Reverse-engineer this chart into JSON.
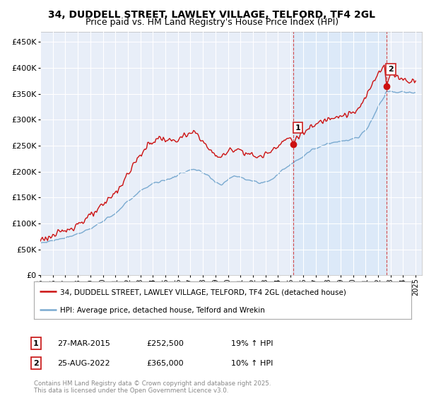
{
  "title": "34, DUDDELL STREET, LAWLEY VILLAGE, TELFORD, TF4 2GL",
  "subtitle": "Price paid vs. HM Land Registry's House Price Index (HPI)",
  "title_fontsize": 10,
  "subtitle_fontsize": 9,
  "ylabel_ticks": [
    "£0",
    "£50K",
    "£100K",
    "£150K",
    "£200K",
    "£250K",
    "£300K",
    "£350K",
    "£400K",
    "£450K"
  ],
  "ytick_values": [
    0,
    50000,
    100000,
    150000,
    200000,
    250000,
    300000,
    350000,
    400000,
    450000
  ],
  "ylim": [
    0,
    470000
  ],
  "xlim_start": 1995.0,
  "xlim_end": 2025.5,
  "background_color": "#ffffff",
  "plot_bg_color": "#e8eef8",
  "plot_bg_color2": "#dce8f5",
  "grid_color": "#ffffff",
  "hpi_line_color": "#7aaad0",
  "price_line_color": "#cc1111",
  "marker1_x": 2015.23,
  "marker1_y": 252500,
  "marker2_x": 2022.65,
  "marker2_y": 365000,
  "marker1_label": "1",
  "marker2_label": "2",
  "vline_color": "#cc2222",
  "shade_color": "#d8e8f8",
  "legend_label_price": "34, DUDDELL STREET, LAWLEY VILLAGE, TELFORD, TF4 2GL (detached house)",
  "legend_label_hpi": "HPI: Average price, detached house, Telford and Wrekin",
  "annotation1": [
    "1",
    "27-MAR-2015",
    "£252,500",
    "19% ↑ HPI"
  ],
  "annotation2": [
    "2",
    "25-AUG-2022",
    "£365,000",
    "10% ↑ HPI"
  ],
  "footer": "Contains HM Land Registry data © Crown copyright and database right 2025.\nThis data is licensed under the Open Government Licence v3.0.",
  "xtick_years": [
    1995,
    1996,
    1997,
    1998,
    1999,
    2000,
    2001,
    2002,
    2003,
    2004,
    2005,
    2006,
    2007,
    2008,
    2009,
    2010,
    2011,
    2012,
    2013,
    2014,
    2015,
    2016,
    2017,
    2018,
    2019,
    2020,
    2021,
    2022,
    2023,
    2024,
    2025
  ]
}
